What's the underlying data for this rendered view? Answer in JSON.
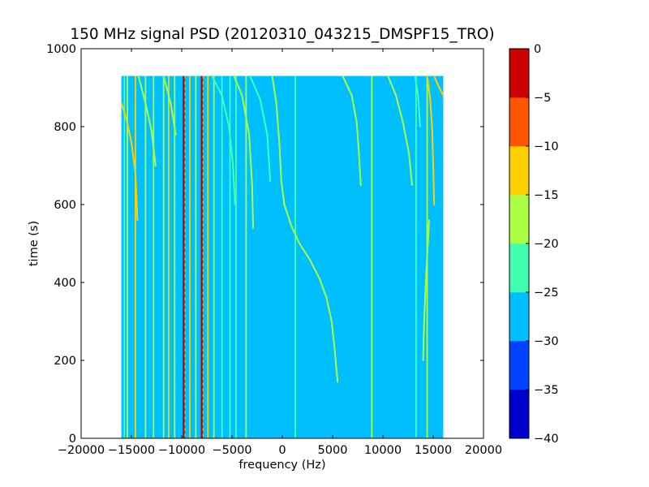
{
  "chart_data": {
    "type": "heatmap",
    "title": "150 MHz signal PSD (20120310_043215_DMSPF15_TRO)",
    "xlabel": "frequency (Hz)",
    "ylabel": "time (s)",
    "xlim": [
      -20000,
      20000
    ],
    "ylim": [
      0,
      1000
    ],
    "x_ticks": [
      -20000,
      -15000,
      -10000,
      -5000,
      0,
      5000,
      10000,
      15000,
      20000
    ],
    "x_tick_labels": [
      "−20000",
      "−15000",
      "−10000",
      "−5000",
      "0",
      "5000",
      "10000",
      "15000",
      "20000"
    ],
    "y_ticks": [
      0,
      200,
      400,
      600,
      800,
      1000
    ],
    "y_tick_labels": [
      "0",
      "200",
      "400",
      "600",
      "800",
      "1000"
    ],
    "data_extent": {
      "x": [
        -16000,
        16000
      ],
      "y": [
        0,
        930
      ]
    },
    "background_level": -27.5,
    "colorbar": {
      "levels": [
        -40,
        -35,
        -30,
        -25,
        -20,
        -15,
        -10,
        -5,
        0
      ],
      "tick_labels": [
        "−40",
        "−35",
        "−30",
        "−25",
        "−20",
        "−15",
        "−10",
        "−5",
        "0"
      ],
      "colors": [
        "#0000cc",
        "#0044ff",
        "#00bfff",
        "#40ffb0",
        "#aaff44",
        "#ffd000",
        "#ff5500",
        "#cc0000"
      ]
    },
    "vertical_lines": [
      {
        "freq": -15700,
        "level": -22.5
      },
      {
        "freq": -15400,
        "level": -17.5
      },
      {
        "freq": -14600,
        "level": -12.5
      },
      {
        "freq": -13600,
        "level": -17.5
      },
      {
        "freq": -12800,
        "level": -17.5
      },
      {
        "freq": -11800,
        "level": -17.5
      },
      {
        "freq": -11300,
        "level": -12.5
      },
      {
        "freq": -10700,
        "level": -17.5
      },
      {
        "freq": -9800,
        "level": -2.5
      },
      {
        "freq": -9200,
        "level": -12.5
      },
      {
        "freq": -8600,
        "level": -17.5
      },
      {
        "freq": -8000,
        "level": -2.5
      },
      {
        "freq": -7400,
        "level": -12.5
      },
      {
        "freq": -6800,
        "level": -17.5
      },
      {
        "freq": -6000,
        "level": -22.5
      },
      {
        "freq": -5200,
        "level": -22.5
      },
      {
        "freq": -4600,
        "level": -22.5
      },
      {
        "freq": -3600,
        "level": -17.5
      },
      {
        "freq": 1300,
        "level": -22.5
      },
      {
        "freq": 8900,
        "level": -17.5
      },
      {
        "freq": 13300,
        "level": -22.5
      },
      {
        "freq": 14400,
        "level": -17.5
      }
    ],
    "curves": [
      {
        "level": -12.5,
        "points": [
          [
            -16000,
            860
          ],
          [
            -15500,
            820
          ],
          [
            -15000,
            760
          ],
          [
            -14600,
            680
          ],
          [
            -14400,
            560
          ]
        ]
      },
      {
        "level": -17.5,
        "points": [
          [
            -14300,
            930
          ],
          [
            -13600,
            860
          ],
          [
            -13000,
            790
          ],
          [
            -12600,
            700
          ]
        ]
      },
      {
        "level": -17.5,
        "points": [
          [
            -11800,
            930
          ],
          [
            -11100,
            860
          ],
          [
            -10600,
            780
          ]
        ]
      },
      {
        "level": -22.5,
        "points": [
          [
            -7000,
            930
          ],
          [
            -6000,
            880
          ],
          [
            -5300,
            800
          ],
          [
            -4900,
            700
          ],
          [
            -4700,
            600
          ]
        ]
      },
      {
        "level": -17.5,
        "points": [
          [
            -4800,
            930
          ],
          [
            -4000,
            880
          ],
          [
            -3300,
            780
          ],
          [
            -3000,
            650
          ],
          [
            -2900,
            540
          ]
        ]
      },
      {
        "level": -22.5,
        "points": [
          [
            -3200,
            930
          ],
          [
            -2200,
            870
          ],
          [
            -1500,
            780
          ],
          [
            -1200,
            660
          ]
        ]
      },
      {
        "level": -17.5,
        "points": [
          [
            -1000,
            930
          ],
          [
            -600,
            860
          ],
          [
            -300,
            760
          ],
          [
            -100,
            660
          ],
          [
            200,
            600
          ],
          [
            900,
            545
          ],
          [
            1700,
            500
          ],
          [
            2700,
            460
          ],
          [
            3700,
            410
          ],
          [
            4400,
            360
          ],
          [
            4900,
            300
          ],
          [
            5200,
            230
          ],
          [
            5400,
            170
          ],
          [
            5500,
            145
          ]
        ]
      },
      {
        "level": -17.5,
        "points": [
          [
            6000,
            930
          ],
          [
            6900,
            880
          ],
          [
            7400,
            810
          ],
          [
            7600,
            740
          ],
          [
            7800,
            650
          ]
        ]
      },
      {
        "level": -17.5,
        "points": [
          [
            10500,
            930
          ],
          [
            11300,
            880
          ],
          [
            12000,
            810
          ],
          [
            12600,
            730
          ],
          [
            12900,
            650
          ]
        ]
      },
      {
        "level": -22.5,
        "points": [
          [
            13200,
            930
          ],
          [
            13500,
            880
          ],
          [
            13700,
            800
          ]
        ]
      },
      {
        "level": -12.5,
        "points": [
          [
            14400,
            930
          ],
          [
            14700,
            870
          ],
          [
            14900,
            790
          ],
          [
            15000,
            700
          ],
          [
            15100,
            600
          ]
        ]
      },
      {
        "level": -17.5,
        "points": [
          [
            14600,
            560
          ],
          [
            14300,
            420
          ],
          [
            14100,
            300
          ],
          [
            14000,
            200
          ]
        ]
      },
      {
        "level": -12.5,
        "points": [
          [
            15100,
            930
          ],
          [
            15500,
            905
          ],
          [
            16000,
            880
          ]
        ]
      }
    ]
  }
}
